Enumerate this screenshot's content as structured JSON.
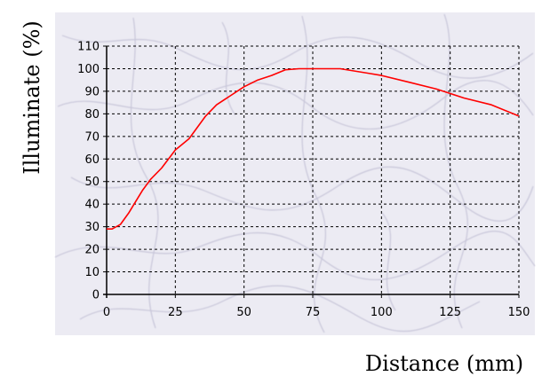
{
  "colors": {
    "background": "#ffffff",
    "panel": "#ecebf3",
    "marble_vein": "#bcbad0",
    "grid": "#000000",
    "series_line": "#ff0000"
  },
  "chart_data": {
    "type": "line",
    "title": "",
    "xlabel": "Distance (mm)",
    "ylabel": "Illuminate (%)",
    "xlim": [
      0,
      150
    ],
    "ylim": [
      0,
      110
    ],
    "x_ticks": [
      0,
      25,
      50,
      75,
      100,
      125,
      150
    ],
    "y_ticks": [
      0,
      10,
      20,
      30,
      40,
      50,
      60,
      70,
      80,
      90,
      100,
      110
    ],
    "grid": true,
    "grid_style": "dashed",
    "legend": "none",
    "series": [
      {
        "color": "#ff0000",
        "x": [
          0,
          2,
          5,
          8,
          10,
          13,
          16,
          20,
          25,
          28,
          30,
          33,
          36,
          40,
          45,
          50,
          55,
          60,
          65,
          70,
          75,
          80,
          85,
          90,
          95,
          100,
          110,
          120,
          130,
          140,
          150
        ],
        "y": [
          29,
          29,
          31,
          36,
          40,
          46,
          51,
          56,
          64,
          67,
          69,
          74,
          79,
          84,
          88,
          92,
          95,
          97,
          99.5,
          100,
          100,
          100,
          100,
          99,
          98,
          97,
          94,
          91,
          87,
          84,
          79
        ]
      }
    ]
  }
}
